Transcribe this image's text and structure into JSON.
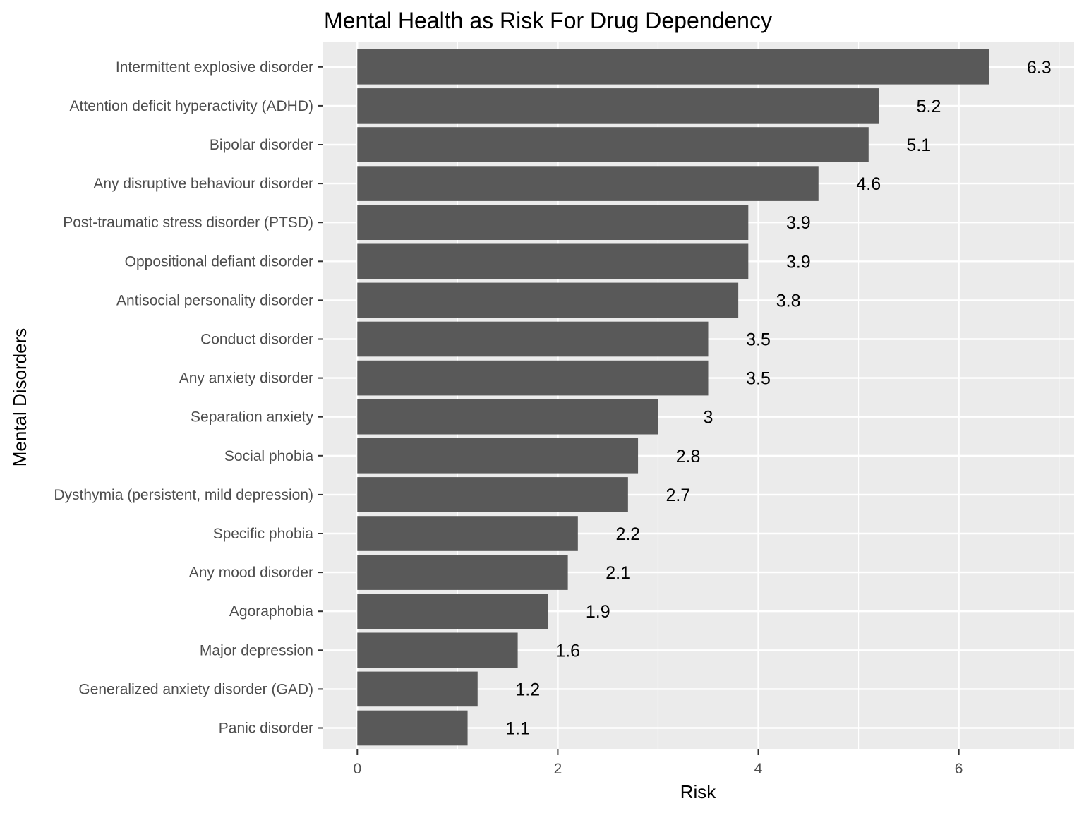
{
  "chart_data": {
    "type": "bar",
    "orientation": "horizontal",
    "title": "Mental Health as Risk For Drug Dependency",
    "xlabel": "Risk",
    "ylabel": "Mental Disorders",
    "xlim": [
      -0.34,
      7.15
    ],
    "x_ticks": [
      0,
      2,
      4,
      6
    ],
    "grid": true,
    "legend": "none",
    "bar_color": "#595959",
    "panel_color": "#ebebeb",
    "categories": [
      "Intermittent explosive disorder",
      "Attention deficit hyperactivity (ADHD)",
      "Bipolar disorder",
      "Any disruptive behaviour disorder",
      "Post-traumatic stress disorder (PTSD)",
      "Oppositional defiant disorder",
      "Antisocial personality disorder",
      "Conduct disorder",
      "Any anxiety disorder",
      "Separation anxiety",
      "Social phobia",
      "Dysthymia (persistent, mild depression)",
      "Specific phobia",
      "Any mood disorder",
      "Agoraphobia",
      "Major depression",
      "Generalized anxiety disorder (GAD)",
      "Panic disorder"
    ],
    "values": [
      6.3,
      5.2,
      5.1,
      4.6,
      3.9,
      3.9,
      3.8,
      3.5,
      3.5,
      3,
      2.8,
      2.7,
      2.2,
      2.1,
      1.9,
      1.6,
      1.2,
      1.1
    ],
    "value_labels": [
      "6.3",
      "5.2",
      "5.1",
      "4.6",
      "3.9",
      "3.9",
      "3.8",
      "3.5",
      "3.5",
      "3",
      "2.8",
      "2.7",
      "2.2",
      "2.1",
      "1.9",
      "1.6",
      "1.2",
      "1.1"
    ]
  }
}
